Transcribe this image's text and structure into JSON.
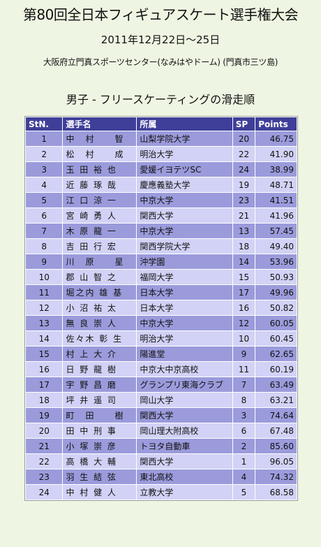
{
  "header": {
    "title": "第80回全日本フィギュアスケート選手権大会",
    "date": "2011年12月22日～25日",
    "venue": "大阪府立門真スポーツセンター(なみはやドーム) (門真市三ツ島)"
  },
  "section_title": "男子 - フリースケーティングの滑走順",
  "table": {
    "columns": [
      "StN.",
      "選手名",
      "所属",
      "SP",
      "Points"
    ],
    "rows": [
      [
        "1",
        "中　村　　智",
        "山梨学院大学",
        "20",
        "46.75"
      ],
      [
        "2",
        "松　村　　成",
        "明治大学",
        "22",
        "41.90"
      ],
      [
        "3",
        "玉 田 裕 也",
        "愛媛イヨテツSC",
        "24",
        "38.99"
      ],
      [
        "4",
        "近 藤 琢 哉",
        "慶應義塾大学",
        "19",
        "48.71"
      ],
      [
        "5",
        "江 口 涼 一",
        "中京大学",
        "23",
        "41.51"
      ],
      [
        "6",
        "宮 崎 勇 人",
        "関西大学",
        "21",
        "41.96"
      ],
      [
        "7",
        "木 原 龍 一",
        "中京大学",
        "13",
        "57.45"
      ],
      [
        "8",
        "吉 田 行 宏",
        "関西学院大学",
        "18",
        "49.40"
      ],
      [
        "9",
        "川　原　　星",
        "沖学園",
        "14",
        "53.96"
      ],
      [
        "10",
        "郡 山 智 之",
        "福岡大学",
        "15",
        "50.93"
      ],
      [
        "11",
        "堀之内 雄 基",
        "日本大学",
        "17",
        "49.96"
      ],
      [
        "12",
        "小 沼 祐 太",
        "日本大学",
        "16",
        "50.82"
      ],
      [
        "13",
        "無 良 崇 人",
        "中京大学",
        "12",
        "60.05"
      ],
      [
        "14",
        "佐々木 彰 生",
        "明治大学",
        "10",
        "60.45"
      ],
      [
        "15",
        "村 上 大 介",
        "陽進堂",
        "9",
        "62.65"
      ],
      [
        "16",
        "日 野 龍 樹",
        "中京大中京高校",
        "11",
        "60.19"
      ],
      [
        "17",
        "宇 野 昌 磨",
        "グランプリ東海クラブ",
        "7",
        "63.49"
      ],
      [
        "18",
        "坪 井 遥 司",
        "岡山大学",
        "8",
        "63.21"
      ],
      [
        "19",
        "町　田　　樹",
        "関西大学",
        "3",
        "74.64"
      ],
      [
        "20",
        "田 中 刑 事",
        "岡山理大附高校",
        "6",
        "67.48"
      ],
      [
        "21",
        "小 塚 崇 彦",
        "トヨタ自動車",
        "2",
        "85.60"
      ],
      [
        "22",
        "高 橋 大 輔",
        "関西大学",
        "1",
        "96.05"
      ],
      [
        "23",
        "羽 生 結 弦",
        "東北高校",
        "4",
        "74.32"
      ],
      [
        "24",
        "中 村 健 人",
        "立教大学",
        "5",
        "68.58"
      ]
    ]
  },
  "colors": {
    "background": "#eef5e2",
    "header_row": "#3f3f99",
    "row_dark": "#9b9bdc",
    "row_light": "#d2d2f6"
  }
}
